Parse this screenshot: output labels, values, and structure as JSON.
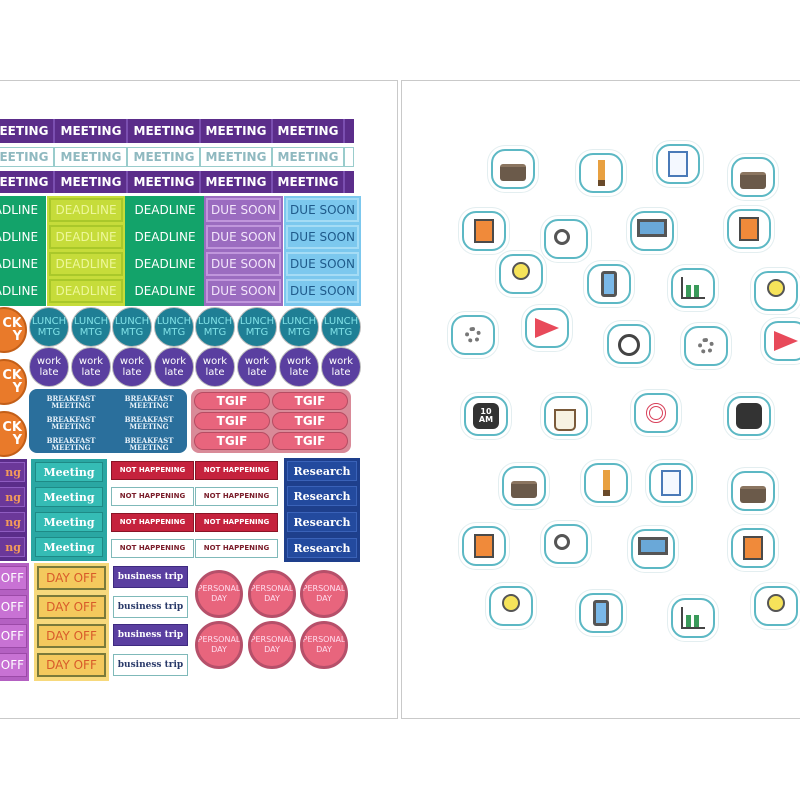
{
  "left_sheet": {
    "meeting_label": "MEETING",
    "deadline_label": "DEADLINE",
    "due_soon_label": "DUE SOON",
    "lunch_label": [
      "LUNCH",
      "MTG"
    ],
    "work_late_label": [
      "work",
      "late"
    ],
    "sick_day_fragment": [
      "CK",
      "Y"
    ],
    "breakfast_label": [
      "BREAKFAST",
      "MEETING"
    ],
    "tgif_label": "TGIF",
    "meeting_script_label": "Meeting",
    "meeting_fragment": "ng",
    "not_happening_label": "NOT HAPPENING",
    "research_label": "Research",
    "off_fragment": "OFF",
    "day_off_label": "DAY OFF",
    "business_trip_label": "business trip",
    "personal_day_label": [
      "PERSONAL",
      "DAY"
    ]
  },
  "right_sheet": {
    "watch_text": [
      "10",
      "AM"
    ],
    "icons": [
      "briefcase",
      "pencil",
      "checklist",
      "briefcase",
      "calculator",
      "magnifier",
      "laptop",
      "calculator",
      "lightbulb",
      "phone",
      "bar-chart",
      "lightbulb",
      "gear",
      "megaphone",
      "stopwatch",
      "gear",
      "megaphone",
      "watch",
      "coffee-mug",
      "target",
      "watch",
      "briefcase",
      "pencil",
      "checklist",
      "briefcase",
      "calculator",
      "magnifier",
      "laptop",
      "calculator",
      "lightbulb",
      "phone",
      "bar-chart",
      "lightbulb"
    ]
  },
  "colors": {
    "purple": "#5b2d8a",
    "teal": "#2aa7a3",
    "green": "#13a36a",
    "lime": "#c6dc3a",
    "lavender": "#9b6cc0",
    "skyblue": "#7cc8ee",
    "navy": "#1e3f8c",
    "red": "#c5223d",
    "pink": "#e8657d",
    "yellow": "#f4c95d",
    "orange": "#e97a2a",
    "outline": "#5cb8c4"
  }
}
